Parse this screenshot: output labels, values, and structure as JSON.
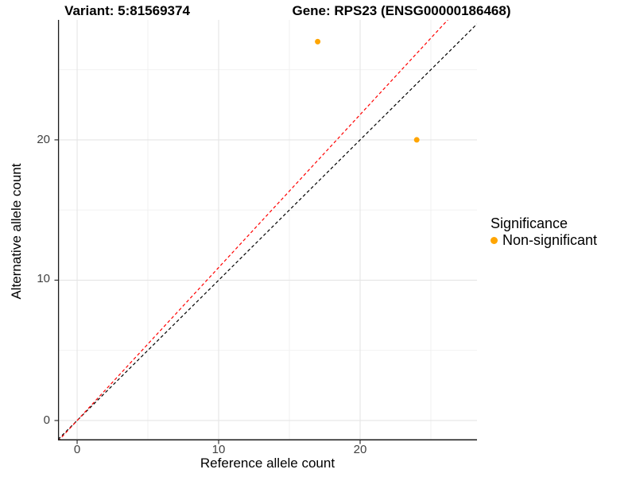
{
  "titles": {
    "variant": "Variant: 5:81569374",
    "gene": "Gene: RPS23 (ENSG00000186468)"
  },
  "chart_data": {
    "type": "scatter",
    "xlabel": "Reference allele count",
    "ylabel": "Alternative allele count",
    "xlim": [
      -1.35,
      28.26
    ],
    "ylim": [
      -1.42,
      28.55
    ],
    "x_major_ticks": [
      0,
      10,
      20
    ],
    "y_major_ticks": [
      0,
      10,
      20
    ],
    "x_minor_ticks": [
      5,
      15,
      25
    ],
    "y_minor_ticks": [
      5,
      15,
      25
    ],
    "grid": true,
    "points": [
      {
        "x": 17,
        "y": 27,
        "series": "Non-significant"
      },
      {
        "x": 24,
        "y": 20,
        "series": "Non-significant"
      }
    ],
    "point_radius": 3.5,
    "lines": [
      {
        "name": "identity-line",
        "slope": 1,
        "intercept": 0,
        "color": "#000000",
        "style": "dashed"
      },
      {
        "name": "expected-ratio-line",
        "slope": 1.09,
        "intercept": 0,
        "color": "#FF0000",
        "style": "dashed"
      }
    ],
    "legend": {
      "title": "Significance",
      "position": "right-middle",
      "entries": [
        {
          "label": "Non-significant",
          "color": "#FFA500"
        }
      ]
    },
    "colors": {
      "point": "#FFA500",
      "grid_major": "#E5E5E5",
      "grid_minor": "#F0F0F0",
      "axis_line": "#1A1A1A",
      "tick_mark": "#333333",
      "background": "#FFFFFF"
    }
  },
  "tick_labels": {
    "x": [
      "0",
      "10",
      "20"
    ],
    "y": [
      "0",
      "10",
      "20"
    ]
  }
}
